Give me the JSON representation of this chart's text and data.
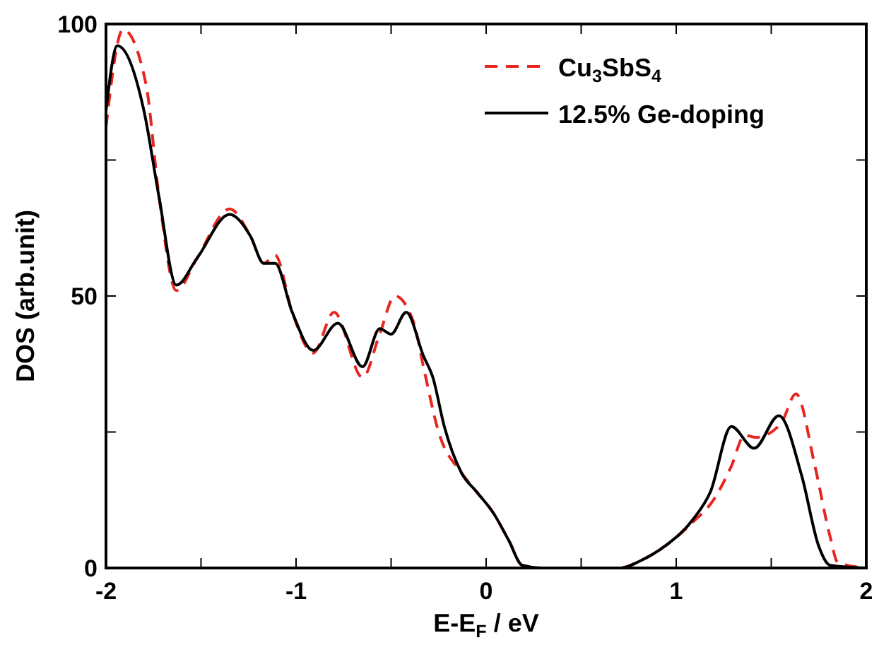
{
  "chart_data": {
    "type": "line",
    "xlabel": "E-E$_{F}$ / eV",
    "ylabel": "DOS (arb.unit)",
    "xlim": [
      -2,
      2
    ],
    "ylim": [
      0,
      100
    ],
    "xticks": [
      -2,
      {
        "value": -1.5,
        "label": null
      },
      -1,
      {
        "value": -0.5,
        "label": null
      },
      0,
      {
        "value": 0.5,
        "label": null
      },
      1,
      {
        "value": 1.5,
        "label": null
      },
      2
    ],
    "yticks": [
      0,
      {
        "value": 25,
        "label": null
      },
      50,
      {
        "value": 75,
        "label": null
      },
      100
    ],
    "grid": false,
    "legend": "top right",
    "marker": "none",
    "series": [
      {
        "name": "Cu$_{3}$SbS$_{4}$",
        "color": "#e8261e",
        "line_style": "dashed",
        "x": [
          -2,
          -1.91,
          -1.79,
          -1.72,
          -1.63,
          -1.52,
          -1.35,
          -1.24,
          -1.17,
          -1.11,
          -1.02,
          -0.91,
          -0.8,
          -0.65,
          -0.56,
          -0.48,
          -0.38,
          -0.33,
          -0.25,
          -0.13,
          -0.05,
          0.04,
          0.12,
          0.19,
          0.3,
          0.7,
          0.81,
          0.94,
          1.09,
          1.2,
          1.29,
          1.36,
          1.42,
          1.55,
          1.63,
          1.73,
          1.81,
          1.85,
          2
        ],
        "values": [
          81,
          99,
          89,
          68,
          51,
          57,
          66,
          61,
          56,
          57.5,
          47,
          39.5,
          47,
          35,
          43,
          50,
          45,
          37,
          25,
          17.5,
          14,
          10,
          5,
          0.5,
          0,
          0,
          1.3,
          4,
          8.5,
          12.7,
          18.7,
          24.4,
          24,
          26.5,
          32,
          18.7,
          5.7,
          1,
          0
        ]
      },
      {
        "name": "12.5% Ge-doping",
        "color": "#000000",
        "line_style": "solid",
        "x": [
          -2,
          -1.94,
          -1.8,
          -1.72,
          -1.63,
          -1.52,
          -1.35,
          -1.24,
          -1.17,
          -1.11,
          -1.02,
          -0.91,
          -0.78,
          -0.65,
          -0.56,
          -0.5,
          -0.42,
          -0.33,
          -0.28,
          -0.22,
          -0.13,
          -0.05,
          0.04,
          0.12,
          0.19,
          0.3,
          0.71,
          0.81,
          0.94,
          1.09,
          1.18,
          1.29,
          1.41,
          1.54,
          1.66,
          1.75,
          1.81,
          2
        ],
        "values": [
          84,
          96,
          84,
          68,
          52,
          57,
          65,
          61,
          56,
          56,
          47,
          40,
          45,
          37,
          44,
          43,
          47,
          39,
          35,
          26,
          17.5,
          14,
          10,
          5,
          0.5,
          0,
          0,
          1.3,
          4,
          9,
          14,
          26,
          22,
          28,
          17,
          4,
          0.5,
          0
        ]
      }
    ]
  }
}
